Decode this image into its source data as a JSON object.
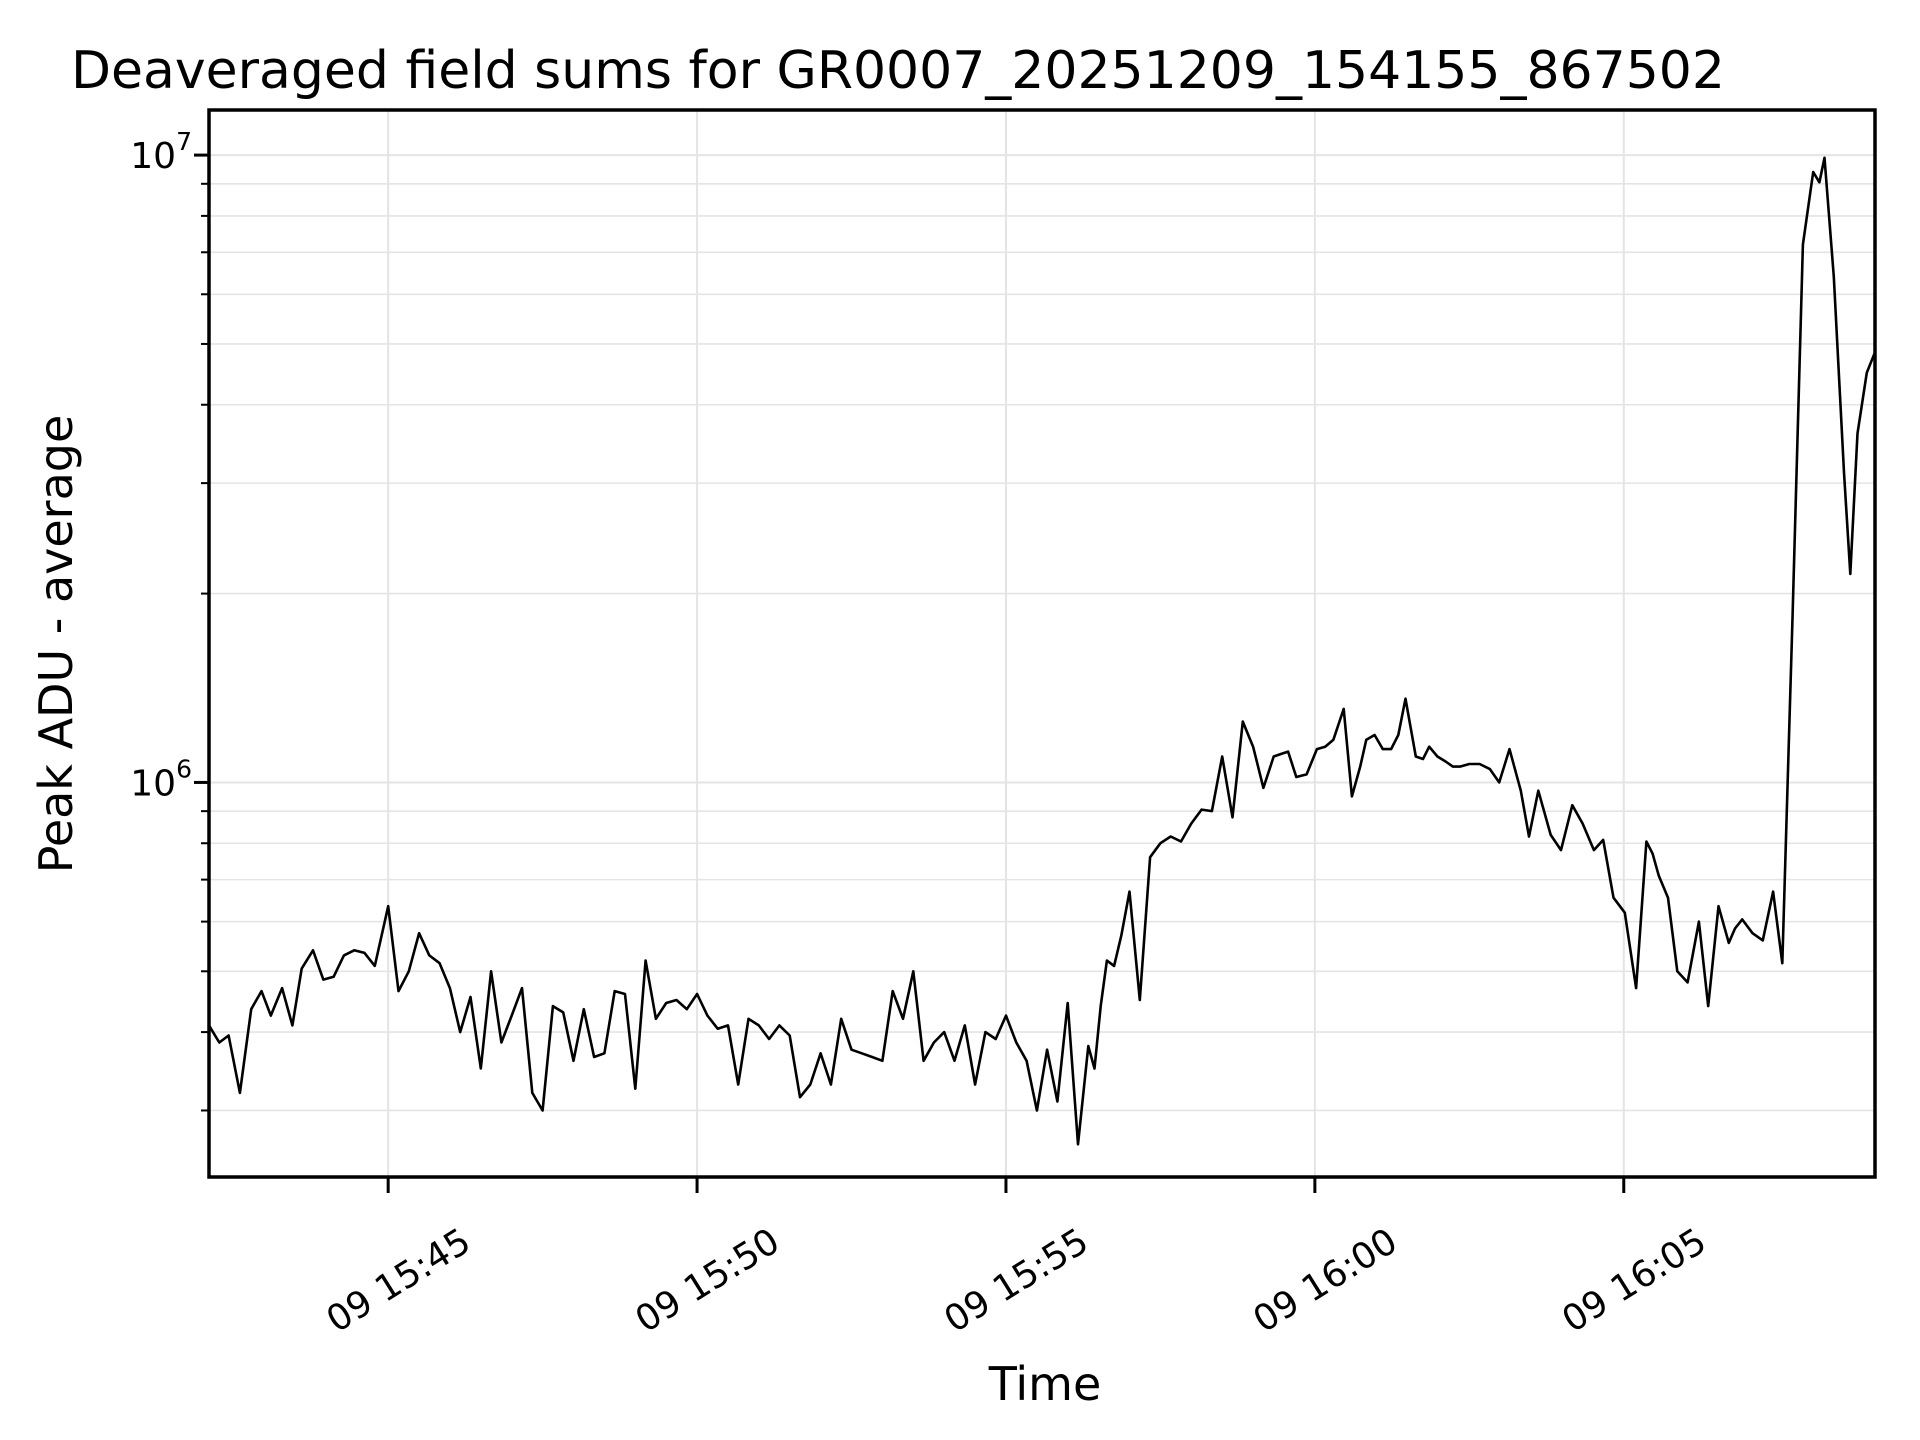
{
  "figure": {
    "title": "Deaveraged field sums for GR0007_20251209_154155_867502",
    "xlabel": "Time",
    "ylabel": "Peak ADU - average",
    "background": "#ffffff"
  },
  "chart_data": {
    "type": "line",
    "title": "Deaveraged field sums for GR0007_20251209_154155_867502",
    "xlabel": "Time",
    "ylabel": "Peak ADU - average",
    "legend": "none",
    "grid": "on",
    "line_color": "#000000",
    "grid_color": "#e4e4e4",
    "spine_color": "#000000",
    "yscale": "log",
    "ylim": [
      235000,
      11800000
    ],
    "x_unit": "seconds since 09 15:42:00",
    "xlim_seconds": [
      6,
      1624
    ],
    "y_major_ticks": [
      {
        "value": 1000000,
        "label_base": "10",
        "label_exp": "6"
      },
      {
        "value": 10000000,
        "label_base": "10",
        "label_exp": "7"
      }
    ],
    "y_minor_ticks": [
      300000,
      400000,
      500000,
      600000,
      700000,
      800000,
      900000,
      2000000,
      3000000,
      4000000,
      5000000,
      6000000,
      7000000,
      8000000,
      9000000
    ],
    "x_ticks": [
      {
        "seconds": 180,
        "label": "09 15:45"
      },
      {
        "seconds": 480,
        "label": "09 15:50"
      },
      {
        "seconds": 780,
        "label": "09 15:55"
      },
      {
        "seconds": 1080,
        "label": "09 16:00"
      },
      {
        "seconds": 1380,
        "label": "09 16:05"
      }
    ],
    "points": [
      [
        6,
        410000
      ],
      [
        16,
        385000
      ],
      [
        25,
        395000
      ],
      [
        36,
        320000
      ],
      [
        47,
        435000
      ],
      [
        57,
        465000
      ],
      [
        66,
        425000
      ],
      [
        77,
        470000
      ],
      [
        87,
        410000
      ],
      [
        96,
        505000
      ],
      [
        107,
        540000
      ],
      [
        117,
        485000
      ],
      [
        127,
        490000
      ],
      [
        137,
        530000
      ],
      [
        147,
        540000
      ],
      [
        157,
        535000
      ],
      [
        167,
        510000
      ],
      [
        180,
        635000
      ],
      [
        190,
        465000
      ],
      [
        200,
        500000
      ],
      [
        210,
        575000
      ],
      [
        220,
        530000
      ],
      [
        230,
        515000
      ],
      [
        240,
        470000
      ],
      [
        250,
        400000
      ],
      [
        260,
        455000
      ],
      [
        270,
        350000
      ],
      [
        280,
        500000
      ],
      [
        290,
        385000
      ],
      [
        300,
        425000
      ],
      [
        310,
        470000
      ],
      [
        320,
        320000
      ],
      [
        330,
        300000
      ],
      [
        340,
        440000
      ],
      [
        350,
        430000
      ],
      [
        360,
        360000
      ],
      [
        370,
        435000
      ],
      [
        380,
        365000
      ],
      [
        390,
        370000
      ],
      [
        400,
        465000
      ],
      [
        410,
        460000
      ],
      [
        420,
        325000
      ],
      [
        430,
        520000
      ],
      [
        440,
        420000
      ],
      [
        450,
        445000
      ],
      [
        460,
        450000
      ],
      [
        470,
        435000
      ],
      [
        480,
        460000
      ],
      [
        490,
        425000
      ],
      [
        500,
        405000
      ],
      [
        510,
        410000
      ],
      [
        520,
        330000
      ],
      [
        530,
        420000
      ],
      [
        540,
        410000
      ],
      [
        550,
        390000
      ],
      [
        560,
        410000
      ],
      [
        570,
        395000
      ],
      [
        580,
        315000
      ],
      [
        590,
        330000
      ],
      [
        600,
        370000
      ],
      [
        610,
        330000
      ],
      [
        620,
        420000
      ],
      [
        630,
        375000
      ],
      [
        640,
        370000
      ],
      [
        650,
        365000
      ],
      [
        660,
        360000
      ],
      [
        670,
        465000
      ],
      [
        680,
        420000
      ],
      [
        690,
        500000
      ],
      [
        700,
        360000
      ],
      [
        710,
        385000
      ],
      [
        720,
        400000
      ],
      [
        730,
        360000
      ],
      [
        740,
        410000
      ],
      [
        750,
        330000
      ],
      [
        760,
        400000
      ],
      [
        770,
        390000
      ],
      [
        780,
        425000
      ],
      [
        790,
        385000
      ],
      [
        800,
        360000
      ],
      [
        810,
        300000
      ],
      [
        820,
        375000
      ],
      [
        830,
        310000
      ],
      [
        840,
        445000
      ],
      [
        850,
        265000
      ],
      [
        860,
        380000
      ],
      [
        866,
        350000
      ],
      [
        872,
        440000
      ],
      [
        878,
        520000
      ],
      [
        885,
        510000
      ],
      [
        892,
        570000
      ],
      [
        900,
        670000
      ],
      [
        910,
        450000
      ],
      [
        920,
        760000
      ],
      [
        930,
        800000
      ],
      [
        940,
        820000
      ],
      [
        950,
        805000
      ],
      [
        960,
        860000
      ],
      [
        970,
        905000
      ],
      [
        980,
        900000
      ],
      [
        990,
        1100000
      ],
      [
        1000,
        880000
      ],
      [
        1010,
        1250000
      ],
      [
        1020,
        1140000
      ],
      [
        1030,
        980000
      ],
      [
        1040,
        1100000
      ],
      [
        1047,
        1110000
      ],
      [
        1054,
        1120000
      ],
      [
        1062,
        1020000
      ],
      [
        1072,
        1030000
      ],
      [
        1082,
        1130000
      ],
      [
        1090,
        1140000
      ],
      [
        1098,
        1170000
      ],
      [
        1108,
        1310000
      ],
      [
        1116,
        950000
      ],
      [
        1124,
        1060000
      ],
      [
        1130,
        1170000
      ],
      [
        1138,
        1190000
      ],
      [
        1146,
        1130000
      ],
      [
        1154,
        1130000
      ],
      [
        1161,
        1190000
      ],
      [
        1168,
        1360000
      ],
      [
        1178,
        1100000
      ],
      [
        1185,
        1090000
      ],
      [
        1191,
        1140000
      ],
      [
        1199,
        1100000
      ],
      [
        1207,
        1080000
      ],
      [
        1214,
        1060000
      ],
      [
        1221,
        1060000
      ],
      [
        1230,
        1070000
      ],
      [
        1240,
        1070000
      ],
      [
        1250,
        1050000
      ],
      [
        1259,
        1000000
      ],
      [
        1269,
        1130000
      ],
      [
        1280,
        970000
      ],
      [
        1288,
        820000
      ],
      [
        1297,
        970000
      ],
      [
        1309,
        825000
      ],
      [
        1319,
        780000
      ],
      [
        1330,
        920000
      ],
      [
        1340,
        860000
      ],
      [
        1351,
        780000
      ],
      [
        1360,
        810000
      ],
      [
        1370,
        655000
      ],
      [
        1381,
        620000
      ],
      [
        1392,
        470000
      ],
      [
        1402,
        805000
      ],
      [
        1408,
        770000
      ],
      [
        1414,
        710000
      ],
      [
        1423,
        655000
      ],
      [
        1432,
        500000
      ],
      [
        1442,
        480000
      ],
      [
        1453,
        600000
      ],
      [
        1462,
        440000
      ],
      [
        1472,
        635000
      ],
      [
        1482,
        555000
      ],
      [
        1488,
        585000
      ],
      [
        1495,
        605000
      ],
      [
        1505,
        575000
      ],
      [
        1515,
        560000
      ],
      [
        1525,
        670000
      ],
      [
        1534,
        515000
      ],
      [
        1544,
        1850000
      ],
      [
        1554,
        7200000
      ],
      [
        1564,
        9400000
      ],
      [
        1570,
        9050000
      ],
      [
        1575,
        9900000
      ],
      [
        1584,
        6400000
      ],
      [
        1594,
        3100000
      ],
      [
        1600,
        2150000
      ],
      [
        1607,
        3600000
      ],
      [
        1616,
        4500000
      ],
      [
        1624,
        4850000
      ]
    ]
  }
}
